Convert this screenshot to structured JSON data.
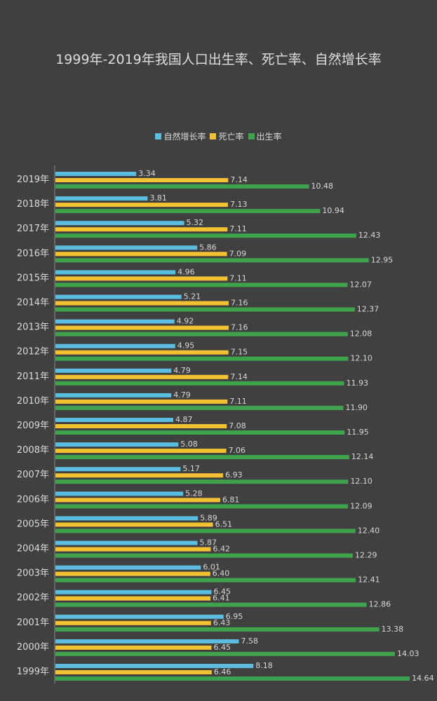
{
  "chart_data": {
    "type": "bar",
    "orientation": "horizontal",
    "title": "1999年-2019年我国人口出生率、死亡率、自然增长率",
    "categories": [
      "2019年",
      "2018年",
      "2017年",
      "2016年",
      "2015年",
      "2014年",
      "2013年",
      "2012年",
      "2011年",
      "2010年",
      "2009年",
      "2008年",
      "2007年",
      "2006年",
      "2005年",
      "2004年",
      "2003年",
      "2002年",
      "2001年",
      "2000年",
      "1999年"
    ],
    "series": [
      {
        "name": "自然增长率",
        "color": "#5bbde0",
        "values": [
          3.34,
          3.81,
          5.32,
          5.86,
          4.96,
          5.21,
          4.92,
          4.95,
          4.79,
          4.79,
          4.87,
          5.08,
          5.17,
          5.28,
          5.89,
          5.87,
          6.01,
          6.45,
          6.95,
          7.58,
          8.18
        ]
      },
      {
        "name": "死亡率",
        "color": "#f2c232",
        "values": [
          7.14,
          7.13,
          7.11,
          7.09,
          7.11,
          7.16,
          7.16,
          7.15,
          7.14,
          7.11,
          7.08,
          7.06,
          6.93,
          6.81,
          6.51,
          6.42,
          6.4,
          6.41,
          6.43,
          6.45,
          6.46
        ]
      },
      {
        "name": "出生率",
        "color": "#3fa34d",
        "values": [
          10.48,
          10.94,
          12.43,
          12.95,
          12.07,
          12.37,
          12.08,
          12.1,
          11.93,
          11.9,
          11.95,
          12.14,
          12.1,
          12.09,
          12.4,
          12.29,
          12.41,
          12.86,
          13.38,
          14.03,
          14.64
        ]
      }
    ],
    "legend_position": "top",
    "grid": false
  }
}
